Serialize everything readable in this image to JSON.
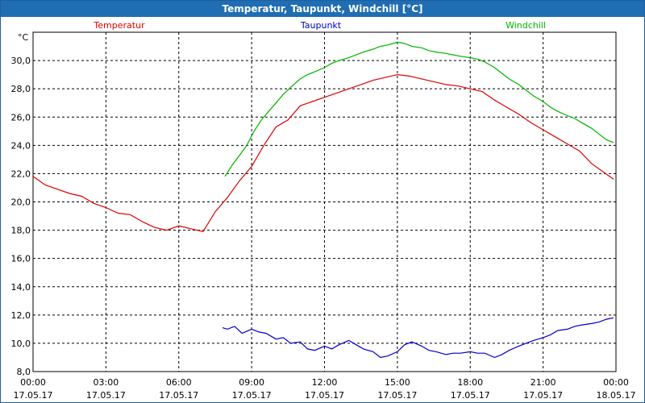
{
  "window": {
    "title": "Temperatur, Taupunkt, Windchill [°C]"
  },
  "chart_data": {
    "type": "line",
    "title": "Temperatur, Taupunkt, Windchill [°C]",
    "ylabel": "°C",
    "ylim": [
      8,
      32
    ],
    "xlim_hours": [
      0,
      24
    ],
    "grid": true,
    "legend_placement": "top",
    "yticks": [
      "8,0",
      "10,0",
      "12,0",
      "14,0",
      "16,0",
      "18,0",
      "20,0",
      "22,0",
      "24,0",
      "26,0",
      "28,0",
      "30,0"
    ],
    "xticks": [
      {
        "time": "00:00",
        "date": "17.05.17"
      },
      {
        "time": "03:00",
        "date": "17.05.17"
      },
      {
        "time": "06:00",
        "date": "17.05.17"
      },
      {
        "time": "09:00",
        "date": "17.05.17"
      },
      {
        "time": "12:00",
        "date": "17.05.17"
      },
      {
        "time": "15:00",
        "date": "17.05.17"
      },
      {
        "time": "18:00",
        "date": "17.05.17"
      },
      {
        "time": "21:00",
        "date": "17.05.17"
      },
      {
        "time": "00:00",
        "date": "18.05.17"
      }
    ],
    "series": [
      {
        "name": "Temperatur",
        "color": "#e00000",
        "x": [
          0,
          0.5,
          1,
          1.5,
          2,
          2.5,
          3,
          3.5,
          4,
          4.5,
          5,
          5.5,
          6,
          6.5,
          7,
          7.5,
          8,
          8.5,
          9,
          9.5,
          10,
          10.5,
          11,
          11.5,
          12,
          12.5,
          13,
          13.5,
          14,
          14.5,
          15,
          15.5,
          16,
          16.5,
          17,
          17.5,
          18,
          18.5,
          19,
          19.5,
          20,
          20.5,
          21,
          21.5,
          22,
          22.5,
          23,
          23.5,
          23.9
        ],
        "y": [
          21.8,
          21.2,
          20.9,
          20.6,
          20.4,
          19.9,
          19.6,
          19.2,
          19.1,
          18.6,
          18.2,
          18.0,
          18.3,
          18.1,
          17.9,
          19.3,
          20.3,
          21.5,
          22.5,
          24.0,
          25.3,
          25.8,
          26.8,
          27.1,
          27.4,
          27.7,
          28.0,
          28.3,
          28.6,
          28.8,
          29.0,
          28.9,
          28.7,
          28.5,
          28.3,
          28.2,
          28.0,
          27.8,
          27.2,
          26.7,
          26.2,
          25.6,
          25.1,
          24.6,
          24.1,
          23.6,
          22.7,
          22.1,
          21.6
        ]
      },
      {
        "name": "Taupunkt",
        "color": "#0000c8",
        "x": [
          7.8,
          8,
          8.3,
          8.6,
          9,
          9.3,
          9.6,
          10,
          10.3,
          10.6,
          11,
          11.3,
          11.6,
          12,
          12.3,
          12.6,
          13,
          13.3,
          13.6,
          14,
          14.3,
          14.6,
          15,
          15.3,
          15.6,
          16,
          16.3,
          16.6,
          17,
          17.3,
          17.6,
          18,
          18.3,
          18.6,
          19,
          19.3,
          19.6,
          20,
          20.3,
          20.6,
          21,
          21.3,
          21.6,
          22,
          22.3,
          22.6,
          23,
          23.3,
          23.6,
          23.9
        ],
        "y": [
          11.1,
          11.0,
          11.2,
          10.7,
          11.0,
          10.8,
          10.7,
          10.3,
          10.4,
          10.0,
          10.1,
          9.6,
          9.5,
          9.8,
          9.6,
          9.9,
          10.2,
          9.9,
          9.6,
          9.4,
          9.0,
          9.1,
          9.4,
          9.9,
          10.1,
          9.8,
          9.5,
          9.4,
          9.2,
          9.3,
          9.3,
          9.4,
          9.3,
          9.3,
          9.0,
          9.2,
          9.5,
          9.8,
          10.0,
          10.2,
          10.4,
          10.6,
          10.9,
          11.0,
          11.2,
          11.3,
          11.4,
          11.5,
          11.7,
          11.8
        ]
      },
      {
        "name": "Windchill",
        "color": "#00b400",
        "x": [
          7.9,
          8.2,
          8.5,
          8.8,
          9.1,
          9.4,
          9.7,
          10,
          10.3,
          10.6,
          11,
          11.3,
          11.6,
          12,
          12.3,
          12.6,
          13,
          13.3,
          13.6,
          14,
          14.3,
          14.6,
          15,
          15.3,
          15.6,
          16,
          16.3,
          16.6,
          17,
          17.3,
          17.6,
          18,
          18.3,
          18.6,
          19,
          19.3,
          19.6,
          20,
          20.3,
          20.6,
          21,
          21.3,
          21.6,
          22,
          22.3,
          22.6,
          23,
          23.3,
          23.6,
          23.9
        ],
        "y": [
          21.8,
          22.6,
          23.3,
          24.0,
          25.0,
          25.8,
          26.4,
          27.0,
          27.6,
          28.1,
          28.7,
          29.0,
          29.2,
          29.5,
          29.8,
          30.0,
          30.2,
          30.4,
          30.6,
          30.8,
          31.0,
          31.1,
          31.3,
          31.2,
          31.0,
          30.9,
          30.7,
          30.6,
          30.5,
          30.4,
          30.3,
          30.2,
          30.1,
          29.9,
          29.5,
          29.1,
          28.7,
          28.3,
          27.9,
          27.5,
          27.1,
          26.7,
          26.4,
          26.1,
          25.9,
          25.6,
          25.2,
          24.8,
          24.4,
          24.2
        ]
      }
    ]
  }
}
